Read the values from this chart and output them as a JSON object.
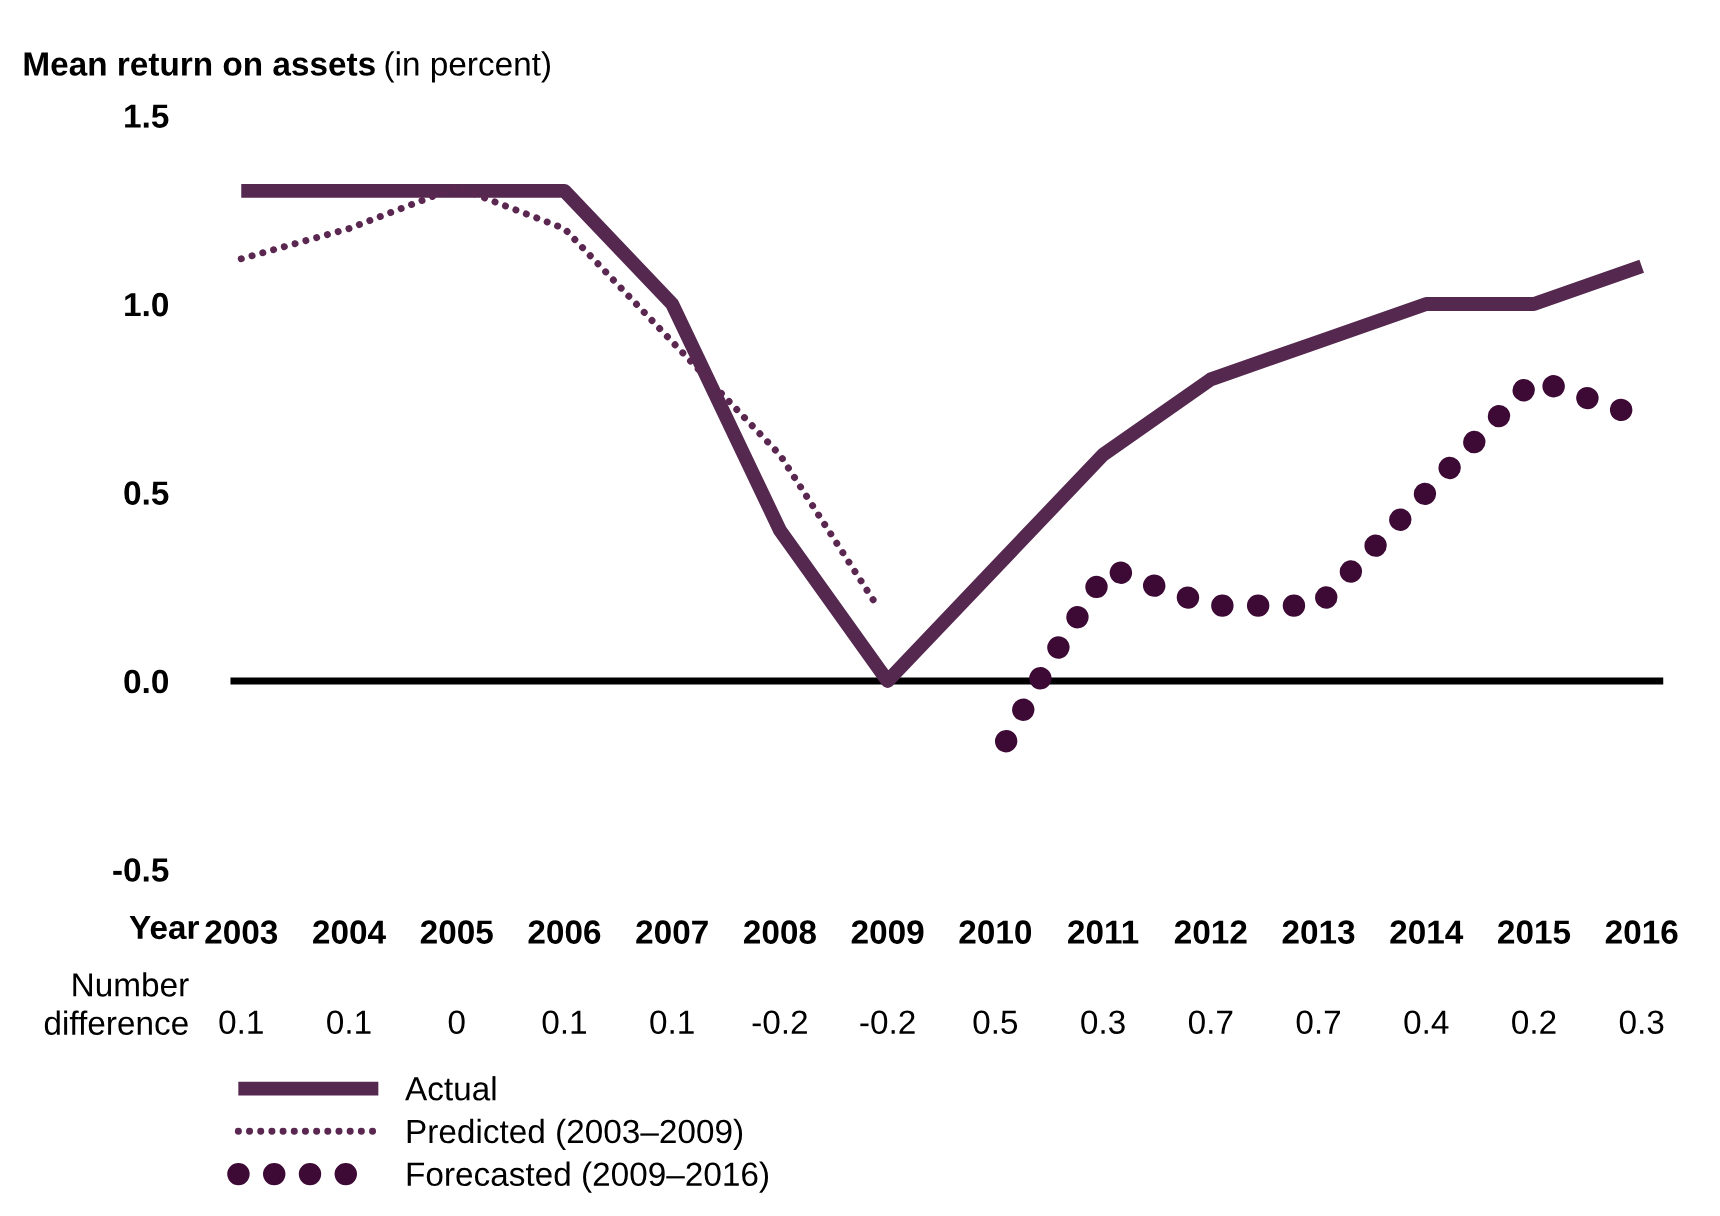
{
  "chart_data": {
    "type": "line",
    "title": "Mean return on assets",
    "subtitle": "(in percent)",
    "xlabel": "Year",
    "xlim": [
      2002.9,
      2016.2
    ],
    "xticks": [
      2003,
      2004,
      2005,
      2006,
      2007,
      2008,
      2009,
      2010,
      2011,
      2012,
      2013,
      2014,
      2015,
      2016
    ],
    "ylim": [
      -0.5,
      1.5
    ],
    "yticks": [
      {
        "value": -0.5,
        "label": "-0.5"
      },
      {
        "value": 0,
        "label": "0.0"
      },
      {
        "value": 0.5,
        "label": "0.5"
      },
      {
        "value": 1,
        "label": "1.0"
      },
      {
        "value": 1.5,
        "label": "1.5"
      }
    ],
    "series": [
      {
        "name": "Actual",
        "color": "#55284f",
        "line_style": "solid",
        "x": [
          2003,
          2004,
          2005,
          2006,
          2007,
          2008,
          2009,
          2010,
          2011,
          2012,
          2013,
          2014,
          2015,
          2016
        ],
        "values": [
          1.3,
          1.3,
          1.3,
          1.3,
          1.0,
          0.4,
          0.0,
          0.3,
          0.6,
          0.8,
          0.9,
          1.0,
          1.0,
          1.1
        ]
      },
      {
        "name": "Predicted (2003–2009)",
        "color": "#5a2750",
        "line_style": "dotted",
        "x": [
          2003,
          2004,
          2005,
          2006,
          2007,
          2008,
          2008.9
        ],
        "values": [
          1.12,
          1.2,
          1.31,
          1.2,
          0.9,
          0.6,
          0.2
        ]
      },
      {
        "name": "Forecasted (2009–2016)",
        "color": "#3d0a35",
        "line_style": "dotted",
        "x": [
          2010.1,
          2010.5,
          2011.05,
          2011.5,
          2012,
          2012.5,
          2013,
          2013.5,
          2014,
          2014.5,
          2015,
          2015.5,
          2016
        ],
        "values": [
          -0.16,
          0.05,
          0.3,
          0.25,
          0.2,
          0.2,
          0.2,
          0.35,
          0.5,
          0.65,
          0.8,
          0.75,
          0.7
        ]
      }
    ],
    "ref_lines": [
      {
        "axis": "y",
        "value": 0,
        "color": "#000000"
      }
    ],
    "annotations": [
      "Number\ndifference",
      "0.1",
      "0.1",
      "0",
      "0.1",
      "0.1",
      "-0.2",
      "-0.2",
      "0.5",
      "0.3",
      "0.7",
      "0.7",
      "0.4",
      "0.2",
      "0.3"
    ],
    "grid": false,
    "legend": "bottom left",
    "marker": "none"
  }
}
